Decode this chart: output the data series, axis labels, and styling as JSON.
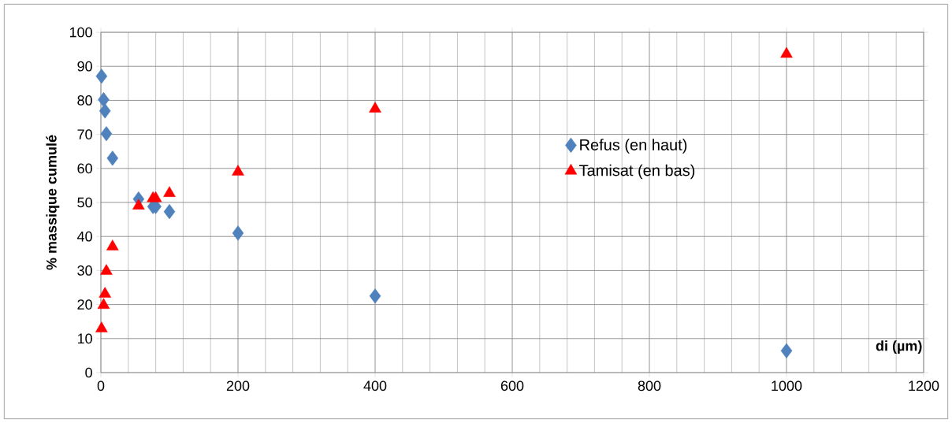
{
  "chart_data": {
    "type": "scatter",
    "xlabel": "di (µm)",
    "ylabel": "% massique cumulé",
    "x": [
      1,
      4,
      6,
      8,
      17,
      55,
      76,
      80,
      100,
      200,
      400,
      1000
    ],
    "series": [
      {
        "name": "Refus (en haut)",
        "color": "#4f81bd",
        "marker": "diamond",
        "values": [
          87.1,
          80.2,
          76.9,
          70.2,
          63,
          51,
          48.8,
          48.8,
          47.3,
          41,
          22.5,
          6.4
        ]
      },
      {
        "name": "Tamisat (en bas)",
        "color": "#ff0000",
        "marker": "triangle",
        "values": [
          12.9,
          19.8,
          23.1,
          29.8,
          37,
          49,
          51.2,
          51.2,
          52.7,
          59,
          77.5,
          93.6
        ]
      }
    ],
    "xlim": [
      0,
      1200
    ],
    "xticks": [
      0,
      200,
      400,
      600,
      800,
      1000,
      1200
    ],
    "ylim": [
      0,
      100
    ],
    "yticks": [
      0,
      10,
      20,
      30,
      40,
      50,
      60,
      70,
      80,
      90,
      100
    ],
    "grid": true,
    "legend": "right"
  }
}
